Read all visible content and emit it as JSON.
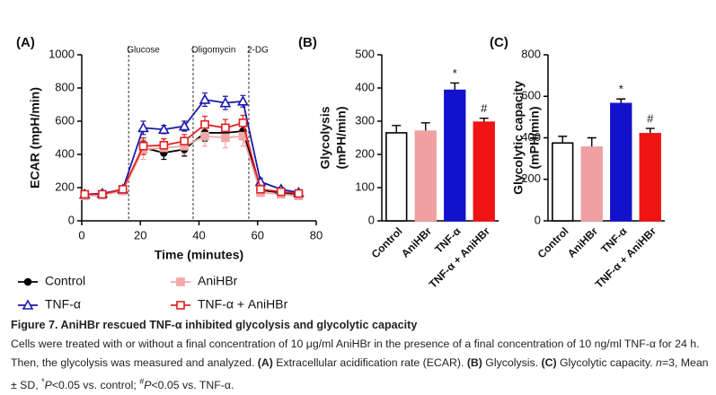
{
  "chart_data": [
    {
      "type": "line",
      "label": "(A)",
      "xlabel": "Time (minutes)",
      "ylabel": "ECAR (mpH/min)",
      "x": [
        1,
        7,
        14,
        21,
        28,
        35,
        42,
        49,
        55,
        61,
        68,
        74
      ],
      "xlim": [
        0,
        80
      ],
      "xticks": [
        0,
        20,
        40,
        60,
        80
      ],
      "ylim": [
        0,
        1000
      ],
      "yticks": [
        0,
        200,
        400,
        600,
        800,
        1000
      ],
      "vlines": [
        {
          "label": "Glucose",
          "x": 16
        },
        {
          "label": "Oligomycin",
          "x": 38
        },
        {
          "label": "2-DG",
          "x": 57
        }
      ],
      "series": [
        {
          "name": "Control",
          "color": "#000000",
          "marker": "circle",
          "filled": true,
          "values": [
            160,
            160,
            185,
            440,
            410,
            430,
            530,
            530,
            540,
            185,
            170,
            160
          ],
          "errors": [
            15,
            12,
            15,
            40,
            40,
            40,
            50,
            45,
            50,
            15,
            10,
            12
          ]
        },
        {
          "name": "AniHBr",
          "color": "#f0a8a8",
          "marker": "square",
          "filled": true,
          "values": [
            150,
            155,
            180,
            430,
            440,
            450,
            510,
            500,
            510,
            170,
            160,
            150
          ],
          "errors": [
            15,
            12,
            15,
            60,
            50,
            50,
            60,
            60,
            60,
            20,
            15,
            15
          ]
        },
        {
          "name": "TNF-α",
          "color": "#1a1aa8",
          "marker": "triangle",
          "filled": false,
          "values": [
            160,
            165,
            190,
            560,
            550,
            570,
            730,
            710,
            720,
            235,
            190,
            170
          ],
          "errors": [
            15,
            12,
            15,
            40,
            25,
            30,
            40,
            40,
            35,
            20,
            12,
            12
          ]
        },
        {
          "name": "TNF-α + AniHBr",
          "color": "#e02020",
          "marker": "square",
          "filled": false,
          "values": [
            160,
            160,
            190,
            450,
            455,
            480,
            580,
            560,
            590,
            190,
            175,
            165
          ],
          "errors": [
            15,
            12,
            15,
            50,
            40,
            40,
            50,
            50,
            45,
            20,
            12,
            12
          ]
        }
      ]
    },
    {
      "type": "bar",
      "label": "(B)",
      "ylabel": [
        "Glycolysis",
        "(mPH/min)"
      ],
      "categories": [
        "Control",
        "AniHBr",
        "TNF-α",
        "TNF-α + AniHBr"
      ],
      "values": [
        265,
        270,
        393,
        297
      ],
      "errors": [
        22,
        25,
        22,
        12
      ],
      "colors": [
        "#ffffff",
        "#f0a0a0",
        "#1212cc",
        "#f01414"
      ],
      "significance": [
        null,
        null,
        "*",
        "#"
      ],
      "ylim": [
        0,
        500
      ],
      "yticks": [
        0,
        100,
        200,
        300,
        400,
        500
      ]
    },
    {
      "type": "bar",
      "label": "(C)",
      "ylabel": [
        "Glycolytic capacity",
        "(mPH/min)"
      ],
      "categories": [
        "Control",
        "AniHBr",
        "TNF-α",
        "TNF-α + AniHBr"
      ],
      "values": [
        375,
        355,
        565,
        420
      ],
      "errors": [
        32,
        45,
        22,
        25
      ],
      "colors": [
        "#ffffff",
        "#f0a0a0",
        "#1212cc",
        "#f01414"
      ],
      "significance": [
        null,
        null,
        "*",
        "#"
      ],
      "ylim": [
        0,
        800
      ],
      "yticks": [
        0,
        200,
        400,
        600,
        800
      ]
    }
  ],
  "caption": {
    "title": "Figure 7. AniHBr rescued TNF-α inhibited glycolysis and glycolytic capacity",
    "segments": [
      {
        "text": "Cells were treated with or without a final concentration of 10 μg/ml AniHBr in the presence of a final concentration of 10 ng/ml TNF-α for 24 h. Then, the glycolysis was measured and analyzed. "
      },
      {
        "text": "(A)",
        "style": "bold"
      },
      {
        "text": " Extracellular acidification rate (ECAR). "
      },
      {
        "text": "(B)",
        "style": "bold"
      },
      {
        "text": " Glycolysis. "
      },
      {
        "text": "(C)",
        "style": "bold"
      },
      {
        "text": " Glycolytic capacity. "
      },
      {
        "text": "n",
        "style": "italic"
      },
      {
        "text": "=3, Mean ± SD, "
      },
      {
        "text": "*",
        "style": "sup"
      },
      {
        "text": "P",
        "style": "italic"
      },
      {
        "text": "<0.05 vs. control; "
      },
      {
        "text": "#",
        "style": "sup"
      },
      {
        "text": "P",
        "style": "italic"
      },
      {
        "text": "<0.05 vs. TNF-α."
      }
    ]
  }
}
